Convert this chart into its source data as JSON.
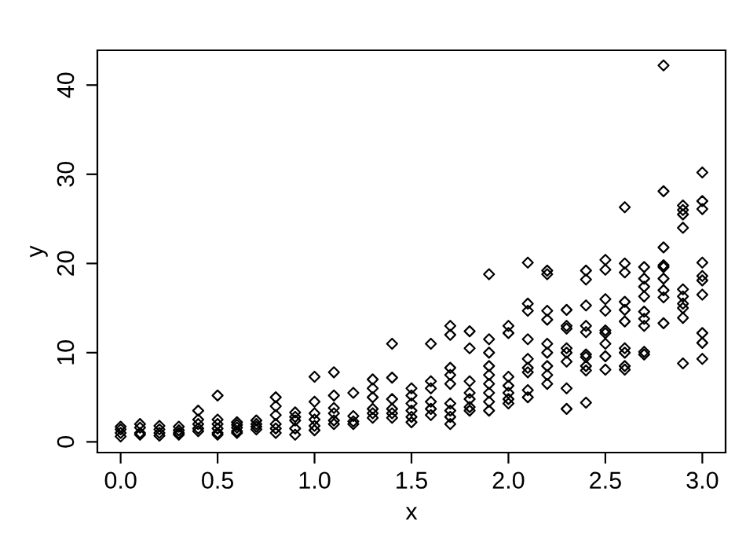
{
  "chart_data": {
    "type": "scatter",
    "xlabel": "x",
    "ylabel": "y",
    "xlim": [
      -0.12,
      3.12
    ],
    "xticks": [
      {
        "value": 0,
        "label": "0.0"
      },
      {
        "value": 0.5,
        "label": "0.5"
      },
      {
        "value": 1,
        "label": "1.0"
      },
      {
        "value": 1.5,
        "label": "1.5"
      },
      {
        "value": 2,
        "label": "2.0"
      },
      {
        "value": 2.5,
        "label": "2.5"
      },
      {
        "value": 3,
        "label": "3.0"
      }
    ],
    "ylim": [
      -1.2,
      43.9
    ],
    "yticks": [
      0,
      10,
      20,
      30,
      40
    ],
    "marker": "diamond",
    "grid": false,
    "series": [
      {
        "color": "#000000",
        "x": [
          0,
          0,
          0,
          0,
          0.1,
          0.1,
          0.1,
          0.1,
          0.2,
          0.2,
          0.2,
          0.2,
          0.3,
          0.3,
          0.3,
          0.3,
          0.4,
          0.4,
          0.4,
          0.4,
          0.4,
          0.5,
          0.5,
          0.5,
          0.5,
          0.5,
          0.5,
          0.6,
          0.6,
          0.6,
          0.6,
          0.6,
          0.7,
          0.7,
          0.7,
          0.7,
          0.8,
          0.8,
          0.8,
          0.8,
          0.8,
          0.8,
          0.9,
          0.9,
          0.9,
          0.9,
          0.9,
          1,
          1,
          1,
          1,
          1,
          1,
          1.1,
          1.1,
          1.1,
          1.1,
          1.1,
          1.1,
          1.2,
          1.2,
          1.2,
          1.2,
          1.3,
          1.3,
          1.3,
          1.3,
          1.3,
          1.3,
          1.4,
          1.4,
          1.4,
          1.4,
          1.4,
          1.4,
          1.5,
          1.5,
          1.5,
          1.5,
          1.5,
          1.5,
          1.6,
          1.6,
          1.6,
          1.6,
          1.6,
          1.6,
          1.7,
          1.7,
          1.7,
          1.7,
          1.7,
          1.7,
          1.7,
          1.7,
          1.7,
          1.8,
          1.8,
          1.8,
          1.8,
          1.8,
          1.8,
          1.8,
          1.9,
          1.9,
          1.9,
          1.9,
          1.9,
          1.9,
          1.9,
          1.9,
          1.9,
          2,
          2,
          2,
          2,
          2,
          2,
          2,
          2.1,
          2.1,
          2.1,
          2.1,
          2.1,
          2.1,
          2.1,
          2.1,
          2.1,
          2.2,
          2.2,
          2.2,
          2.2,
          2.2,
          2.2,
          2.2,
          2.2,
          2.2,
          2.3,
          2.3,
          2.3,
          2.3,
          2.3,
          2.3,
          2.3,
          2.3,
          2.4,
          2.4,
          2.4,
          2.4,
          2.4,
          2.4,
          2.4,
          2.4,
          2.4,
          2.4,
          2.5,
          2.5,
          2.5,
          2.5,
          2.5,
          2.5,
          2.5,
          2.5,
          2.5,
          2.6,
          2.6,
          2.6,
          2.6,
          2.6,
          2.6,
          2.6,
          2.6,
          2.6,
          2.6,
          2.7,
          2.7,
          2.7,
          2.7,
          2.7,
          2.7,
          2.7,
          2.7,
          2.7,
          2.8,
          2.8,
          2.8,
          2.8,
          2.8,
          2.8,
          2.8,
          2.8,
          2.8,
          2.9,
          2.9,
          2.9,
          2.9,
          2.9,
          2.9,
          2.9,
          2.9,
          2.9,
          2.9,
          3,
          3,
          3,
          3,
          3,
          3,
          3,
          3,
          3,
          3
        ],
        "values": [
          1.7,
          1.4,
          1.0,
          0.6,
          2.0,
          1.6,
          1.0,
          0.8,
          1.8,
          1.4,
          1.0,
          0.7,
          1.7,
          1.3,
          1.0,
          0.8,
          3.5,
          2.5,
          2.0,
          1.5,
          1.2,
          5.2,
          2.5,
          2.0,
          1.5,
          1.0,
          0.8,
          2.2,
          1.9,
          1.6,
          1.2,
          1.0,
          2.4,
          2.0,
          1.7,
          1.4,
          5.0,
          4.0,
          3.0,
          2.0,
          1.5,
          1.0,
          3.3,
          2.8,
          2.4,
          1.5,
          0.8,
          7.3,
          4.5,
          3.2,
          2.5,
          1.8,
          1.3,
          7.8,
          5.2,
          3.8,
          3.2,
          2.4,
          2.0,
          5.5,
          2.9,
          2.3,
          2.0,
          7.0,
          6.0,
          5.0,
          3.7,
          3.2,
          2.7,
          11.0,
          7.2,
          4.8,
          3.7,
          3.2,
          2.7,
          6.0,
          5.2,
          4.3,
          3.5,
          2.8,
          2.2,
          11.0,
          6.8,
          6.0,
          4.5,
          3.7,
          3.0,
          13.0,
          12.0,
          8.3,
          7.5,
          6.5,
          4.3,
          3.5,
          2.8,
          2.0,
          12.4,
          10.5,
          6.8,
          5.5,
          4.8,
          3.9,
          3.5,
          18.8,
          11.5,
          10.0,
          8.5,
          7.5,
          6.5,
          5.5,
          4.5,
          3.5,
          13.0,
          12.2,
          7.3,
          6.3,
          5.5,
          4.8,
          4.3,
          20.1,
          15.5,
          14.7,
          11.5,
          9.3,
          8.3,
          7.8,
          5.8,
          5.0,
          19.2,
          18.8,
          14.7,
          13.7,
          11.0,
          10.0,
          8.5,
          7.5,
          6.5,
          14.8,
          13.0,
          12.7,
          10.5,
          10.0,
          9.0,
          6.0,
          3.7,
          19.2,
          18.2,
          15.3,
          13.0,
          12.3,
          9.8,
          9.5,
          8.5,
          8.0,
          4.4,
          20.4,
          19.3,
          16.0,
          14.7,
          12.5,
          12.2,
          11.0,
          9.6,
          8.1,
          26.3,
          20.0,
          19.0,
          15.7,
          14.8,
          13.5,
          10.5,
          10.0,
          8.5,
          8.1,
          19.6,
          18.3,
          17.4,
          16.3,
          14.6,
          13.8,
          13.0,
          10.1,
          9.8,
          42.2,
          28.1,
          21.8,
          19.8,
          19.6,
          18.3,
          17.0,
          16.2,
          13.3,
          26.5,
          26.0,
          25.5,
          24.0,
          17.1,
          16.3,
          15.5,
          15.0,
          13.9,
          8.8,
          30.2,
          27.0,
          26.1,
          20.1,
          18.6,
          18.1,
          16.5,
          12.2,
          11.1,
          9.3
        ]
      }
    ]
  }
}
